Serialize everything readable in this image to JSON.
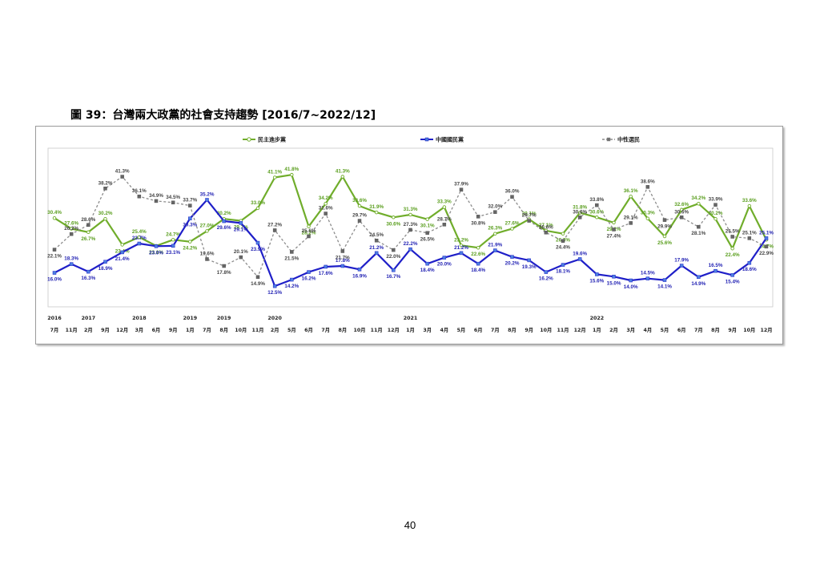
{
  "figure_title": "圖 39：台灣兩大政黨的社會支持趨勢 [2016/7~2022/12]",
  "page_number": "40",
  "chart_data": {
    "type": "line",
    "title": "",
    "xlabel": "",
    "ylabel": "",
    "ylim": [
      10,
      45
    ],
    "grid": false,
    "legend_position": "top",
    "x": [
      {
        "year": "2016",
        "month": "7月"
      },
      {
        "year": "",
        "month": "11月"
      },
      {
        "year": "2017",
        "month": "2月"
      },
      {
        "year": "",
        "month": "9月"
      },
      {
        "year": "",
        "month": "12月"
      },
      {
        "year": "2018",
        "month": "3月"
      },
      {
        "year": "",
        "month": "6月"
      },
      {
        "year": "",
        "month": "9月"
      },
      {
        "year": "2019",
        "month": "1月"
      },
      {
        "year": "",
        "month": "7月"
      },
      {
        "year": "2019",
        "month": "8月"
      },
      {
        "year": "",
        "month": "10月"
      },
      {
        "year": "",
        "month": "11月"
      },
      {
        "year": "2020",
        "month": "2月"
      },
      {
        "year": "",
        "month": "5月"
      },
      {
        "year": "",
        "month": "6月"
      },
      {
        "year": "",
        "month": "7月"
      },
      {
        "year": "",
        "month": "8月"
      },
      {
        "year": "",
        "month": "10月"
      },
      {
        "year": "",
        "month": "11月"
      },
      {
        "year": "",
        "month": "12月"
      },
      {
        "year": "2021",
        "month": "1月"
      },
      {
        "year": "",
        "month": "3月"
      },
      {
        "year": "",
        "month": "4月"
      },
      {
        "year": "",
        "month": "5月"
      },
      {
        "year": "",
        "month": "6月"
      },
      {
        "year": "",
        "month": "7月"
      },
      {
        "year": "",
        "month": "8月"
      },
      {
        "year": "",
        "month": "9月"
      },
      {
        "year": "",
        "month": "10月"
      },
      {
        "year": "",
        "month": "11月"
      },
      {
        "year": "",
        "month": "12月"
      },
      {
        "year": "2022",
        "month": "1月"
      },
      {
        "year": "",
        "month": "2月"
      },
      {
        "year": "",
        "month": "3月"
      },
      {
        "year": "",
        "month": "4月"
      },
      {
        "year": "",
        "month": "5月"
      },
      {
        "year": "",
        "month": "6月"
      },
      {
        "year": "",
        "month": "7月"
      },
      {
        "year": "",
        "month": "8月"
      },
      {
        "year": "",
        "month": "9月"
      },
      {
        "year": "",
        "month": "10月"
      },
      {
        "year": "",
        "month": "12月"
      }
    ],
    "series": [
      {
        "name": "民主進步黨",
        "color": "#70ad2b",
        "label_color": "#5a9e1e",
        "marker": "circle",
        "dashed": false,
        "values": [
          30.4,
          27.6,
          26.7,
          30.2,
          23.4,
          25.4,
          23.1,
          24.7,
          24.2,
          27.0,
          30.2,
          29.7,
          33.0,
          41.1,
          41.8,
          28.2,
          34.2,
          41.3,
          33.6,
          31.9,
          30.6,
          31.3,
          30.1,
          33.3,
          23.2,
          22.6,
          26.3,
          27.6,
          30.1,
          27.1,
          26.3,
          31.8,
          30.6,
          29.2,
          36.1,
          30.3,
          25.6,
          32.6,
          34.2,
          30.2,
          22.4,
          33.6,
          24.7
        ]
      },
      {
        "name": "中國國民黨",
        "color": "#1f1fc8",
        "label_color": "#2323b4",
        "marker": "square",
        "dashed": false,
        "values": [
          16.0,
          18.3,
          16.3,
          18.9,
          21.4,
          23.7,
          23.0,
          23.1,
          30.3,
          35.2,
          29.6,
          29.1,
          23.9,
          12.5,
          14.2,
          16.2,
          17.6,
          17.8,
          16.9,
          21.2,
          16.7,
          22.2,
          18.4,
          20.0,
          21.2,
          18.4,
          21.9,
          20.2,
          19.3,
          16.2,
          18.1,
          19.6,
          15.6,
          15.0,
          14.0,
          14.5,
          14.1,
          17.9,
          14.9,
          16.5,
          15.4,
          18.6,
          25.1
        ]
      },
      {
        "name": "中性選民",
        "color": "#8c8c8c",
        "label_color": "#444444",
        "marker": "square",
        "dashed": true,
        "values": [
          22.1,
          26.2,
          28.6,
          38.2,
          41.3,
          36.1,
          34.9,
          34.5,
          33.7,
          19.6,
          17.8,
          20.1,
          14.9,
          27.2,
          21.5,
          25.6,
          31.6,
          21.7,
          29.7,
          24.5,
          22.0,
          27.3,
          26.5,
          28.7,
          37.9,
          30.8,
          32.0,
          36.0,
          29.7,
          26.6,
          24.4,
          30.6,
          33.8,
          27.4,
          29.1,
          38.6,
          29.9,
          30.6,
          28.1,
          33.9,
          25.5,
          25.1,
          22.9
        ]
      }
    ]
  }
}
